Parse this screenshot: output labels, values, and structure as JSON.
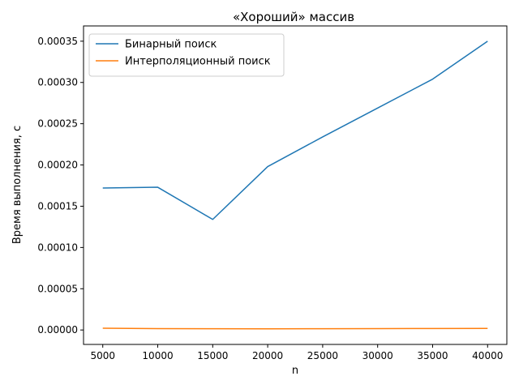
{
  "chart_data": {
    "type": "line",
    "title": "«Хороший» массив",
    "xlabel": "n",
    "ylabel": "Время выполнения, с",
    "x": [
      5000,
      10000,
      15000,
      20000,
      25000,
      30000,
      35000,
      40000
    ],
    "xticks": [
      5000,
      10000,
      15000,
      20000,
      25000,
      30000,
      35000,
      40000
    ],
    "xtick_labels": [
      "5000",
      "10000",
      "15000",
      "20000",
      "25000",
      "30000",
      "35000",
      "40000"
    ],
    "yticks": [
      0,
      5e-05,
      0.0001,
      0.00015,
      0.0002,
      0.00025,
      0.0003,
      0.00035
    ],
    "ytick_labels": [
      "0.00000",
      "0.00005",
      "0.00010",
      "0.00015",
      "0.00020",
      "0.00025",
      "0.00030",
      "0.00035"
    ],
    "xlim": [
      3250,
      41750
    ],
    "ylim": [
      -1.75e-05,
      0.0003685
    ],
    "grid": false,
    "legend_position": "upper-left",
    "series": [
      {
        "name": "Бинарный поиск",
        "color": "#1f77b4",
        "values": [
          0.000172,
          0.000173,
          0.000134,
          0.000198,
          0.000234,
          0.000269,
          0.000304,
          0.00035
        ]
      },
      {
        "name": "Интерполяционный поиск",
        "color": "#ff7f0e",
        "values": [
          2.2e-06,
          1.6e-06,
          1.5e-06,
          1.4e-06,
          1.5e-06,
          1.6e-06,
          1.8e-06,
          1.9e-06
        ]
      }
    ]
  }
}
